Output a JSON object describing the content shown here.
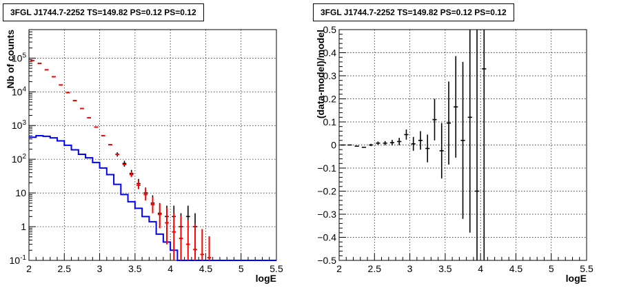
{
  "chart_data": [
    {
      "type": "line",
      "title": "3FGL J1744.7-2252 TS=149.82 PS=0.12 PS=0.12",
      "xlabel": "logE",
      "ylabel": "Nb of counts",
      "xlim": [
        2,
        5.5
      ],
      "ylim": [
        0.1,
        700000
      ],
      "yscale": "log",
      "grid": true,
      "x_ticks": [
        "2",
        "2.5",
        "3",
        "3.5",
        "4",
        "4.5",
        "5",
        "5.5"
      ],
      "y_ticks": [
        "10^-1",
        "1",
        "10",
        "10^2",
        "10^3",
        "10^4",
        "10^5"
      ],
      "series": [
        {
          "color": "#0000ff",
          "style": "histogram",
          "x": [
            2.05,
            2.15,
            2.25,
            2.35,
            2.45,
            2.55,
            2.65,
            2.75,
            2.85,
            2.95,
            3.05,
            3.15,
            3.25,
            3.35,
            3.45,
            3.55,
            3.65,
            3.75,
            3.85,
            3.95,
            4.05,
            4.15,
            4.25,
            4.35,
            4.45,
            4.55,
            4.65,
            4.75,
            4.85,
            4.95,
            5.05,
            5.15,
            5.25,
            5.35,
            5.45
          ],
          "values": [
            450,
            500,
            480,
            430,
            350,
            260,
            190,
            140,
            110,
            80,
            55,
            35,
            18,
            9,
            5.5,
            3.5,
            2.0,
            1.4,
            0.6,
            0.35,
            0.2,
            0.1,
            0.1,
            0.1,
            0.1,
            0.1,
            0.1,
            0.1,
            0.1,
            0.1,
            0.1,
            0.1,
            0.1,
            0.1,
            0.1
          ]
        },
        {
          "color": "#ff0000",
          "style": "model",
          "x": [
            2.05,
            2.15,
            2.25,
            2.35,
            2.45,
            2.55,
            2.65,
            2.75,
            2.85,
            2.95,
            3.05,
            3.15,
            3.25,
            3.35,
            3.45,
            3.55,
            3.65,
            3.75,
            3.85,
            3.95,
            4.05,
            4.15,
            4.25,
            4.35,
            4.45,
            4.55
          ],
          "values": [
            85000,
            70000,
            45000,
            28000,
            16000,
            9500,
            5500,
            3200,
            1700,
            900,
            500,
            270,
            140,
            70,
            35,
            17,
            9,
            4.5,
            2.3,
            1.3,
            0.7,
            0.45,
            0.3,
            0.21,
            0.15,
            0.12
          ],
          "err_lo": [
            0,
            0,
            0,
            0,
            0,
            0,
            0,
            0,
            0,
            0,
            0,
            0,
            0,
            0,
            5,
            4,
            3,
            2,
            1.4,
            1.0,
            0.6,
            0.35,
            0.2,
            0.11,
            0.05,
            0.02
          ],
          "err_hi": [
            0,
            0,
            0,
            0,
            0,
            0,
            0,
            0,
            0,
            0,
            0,
            0,
            0,
            0,
            8,
            7,
            5,
            3,
            2.5,
            2.3,
            1.8,
            1.6,
            1.3,
            1.0,
            0.7,
            0.4
          ]
        },
        {
          "color": "#000000",
          "style": "data",
          "x": [
            2.05,
            2.15,
            2.25,
            2.35,
            2.45,
            2.55,
            2.65,
            2.75,
            2.85,
            2.95,
            3.05,
            3.15,
            3.25,
            3.35,
            3.45,
            3.55,
            3.65,
            3.75,
            3.85,
            3.95,
            4.05,
            4.15,
            4.25,
            4.35
          ],
          "values": [
            85000,
            70000,
            45000,
            28000,
            16000,
            9500,
            5500,
            3200,
            1700,
            900,
            500,
            270,
            140,
            75,
            38,
            19,
            10,
            5,
            2.5,
            2,
            2,
            1,
            2,
            1
          ],
          "err_lo": [
            0,
            0,
            0,
            0,
            0,
            0,
            0,
            0,
            0,
            0,
            0,
            0,
            20,
            15,
            8,
            5,
            3.5,
            2.2,
            1.4,
            1.2,
            1.2,
            0.8,
            1.2,
            0.8
          ],
          "err_hi": [
            0,
            0,
            0,
            0,
            0,
            0,
            0,
            0,
            0,
            0,
            0,
            0,
            20,
            15,
            10,
            7,
            4.5,
            3.5,
            2.5,
            2.2,
            2.2,
            1.5,
            2.2,
            1.5
          ]
        }
      ]
    },
    {
      "type": "scatter",
      "title": "3FGL J1744.7-2252 TS=149.82 PS=0.12 PS=0.12",
      "xlabel": "logE",
      "ylabel": "(data-model)/model",
      "xlim": [
        2,
        5.5
      ],
      "ylim": [
        -0.5,
        0.5
      ],
      "grid": true,
      "x_ticks": [
        "2",
        "2.5",
        "3",
        "3.5",
        "4",
        "4.5",
        "5",
        "5.5"
      ],
      "y_ticks": [
        "−0.5",
        "−0.4",
        "−0.3",
        "−0.2",
        "−0.1",
        "0",
        "0.1",
        "0.2",
        "0.3",
        "0.4",
        "0.5"
      ],
      "series": [
        {
          "color": "#000000",
          "x": [
            2.05,
            2.15,
            2.25,
            2.35,
            2.45,
            2.55,
            2.65,
            2.75,
            2.85,
            2.95,
            3.05,
            3.15,
            3.25,
            3.35,
            3.45,
            3.55,
            3.65,
            3.75,
            3.85,
            3.95,
            4.05
          ],
          "values": [
            0.0,
            0.0,
            -0.005,
            -0.01,
            0.0,
            0.008,
            0.008,
            0.01,
            0.015,
            0.045,
            0.005,
            0.02,
            -0.015,
            0.11,
            -0.025,
            0.095,
            0.165,
            0.02,
            0.12,
            -0.2,
            0.33
          ],
          "err": [
            0.002,
            0.002,
            0.003,
            0.004,
            0.005,
            0.007,
            0.009,
            0.012,
            0.016,
            0.022,
            0.03,
            0.04,
            0.06,
            0.09,
            0.12,
            0.18,
            0.22,
            0.34,
            0.5,
            0.7,
            0.9
          ]
        }
      ]
    }
  ]
}
